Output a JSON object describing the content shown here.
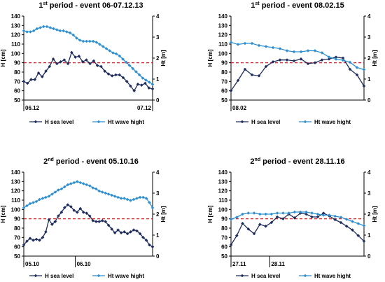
{
  "chart_data": [
    {
      "type": "line",
      "title_main": "1",
      "title_sup": "st",
      "title_rest": " period - event 06-07.12.13",
      "ylabel": "H [cm]",
      "y2label": "Ht [m]",
      "ylim": [
        50,
        140
      ],
      "y2lim": [
        0,
        4
      ],
      "yticks": [
        "50",
        "60",
        "70",
        "80",
        "90",
        "100",
        "110",
        "120",
        "130",
        "140"
      ],
      "y2ticks": [
        "0",
        "1",
        "2",
        "3",
        "4"
      ],
      "xlim": [
        0,
        28
      ],
      "xticks": [
        {
          "x": 0,
          "label": "06.12"
        },
        {
          "x": 28,
          "label": "07.12"
        }
      ],
      "threshold": 90,
      "series": [
        {
          "name": "H sea level",
          "color": "#1f2d5c",
          "axis": "left",
          "values": [
            70,
            68,
            72,
            72,
            79,
            75,
            81,
            86,
            94,
            89,
            91,
            93,
            89,
            101,
            96,
            97,
            91,
            93,
            89,
            92,
            87,
            86,
            81,
            78,
            76,
            77,
            77,
            74,
            70,
            65,
            60,
            67,
            66,
            68,
            63,
            62
          ]
        },
        {
          "name": "Ht wave hight",
          "color": "#2e8fd0",
          "axis": "right",
          "values": [
            3.3,
            3.25,
            3.25,
            3.3,
            3.4,
            3.45,
            3.5,
            3.5,
            3.45,
            3.4,
            3.35,
            3.3,
            3.3,
            3.25,
            3.2,
            3.1,
            2.95,
            2.85,
            2.8,
            2.8,
            2.8,
            2.8,
            2.75,
            2.65,
            2.55,
            2.45,
            2.35,
            2.25,
            2.2,
            2.1,
            1.95,
            1.8,
            1.65,
            1.5,
            1.35,
            1.2,
            1.05,
            0.95,
            0.85,
            0.75
          ]
        }
      ]
    },
    {
      "type": "line",
      "title_main": "1",
      "title_sup": "st",
      "title_rest": " period - event 08.02.15",
      "ylabel": "H [cm]",
      "y2label": "Ht [m]",
      "ylim": [
        50,
        140
      ],
      "y2lim": [
        0,
        4
      ],
      "yticks": [
        "50",
        "60",
        "70",
        "80",
        "90",
        "100",
        "110",
        "120",
        "130",
        "140"
      ],
      "y2ticks": [
        "0",
        "1",
        "2",
        "3",
        "4"
      ],
      "xlim": [
        0,
        28
      ],
      "xticks": [
        {
          "x": 0,
          "label": "08.02"
        }
      ],
      "threshold": 90,
      "series": [
        {
          "name": "H sea level",
          "color": "#1f2d5c",
          "axis": "left",
          "values": [
            60,
            71,
            83,
            77,
            76,
            86,
            91,
            93,
            93,
            92,
            94,
            89,
            90,
            93,
            94,
            96,
            95,
            83,
            77,
            65
          ]
        },
        {
          "name": "Ht wave hight",
          "color": "#2e8fd0",
          "axis": "right",
          "values": [
            2.75,
            2.65,
            2.7,
            2.7,
            2.6,
            2.55,
            2.5,
            2.45,
            2.35,
            2.3,
            2.3,
            2.35,
            2.35,
            2.25,
            2.05,
            1.95,
            1.9,
            1.8,
            1.55,
            1.45
          ]
        }
      ]
    },
    {
      "type": "line",
      "title_main": "2",
      "title_sup": "nd",
      "title_rest": " period - event 05.10.16",
      "ylabel": "H [cm]",
      "y2label": "Ht [m]",
      "ylim": [
        50,
        140
      ],
      "y2lim": [
        0,
        4
      ],
      "yticks": [
        "50",
        "60",
        "70",
        "80",
        "90",
        "100",
        "110",
        "120",
        "130",
        "140"
      ],
      "y2ticks": [
        "0",
        "1",
        "2",
        "3",
        "4"
      ],
      "xlim": [
        0,
        60
      ],
      "xticks": [
        {
          "x": 0,
          "label": "05.10"
        },
        {
          "x": 24,
          "label": "06.10"
        }
      ],
      "threshold": 90,
      "series": [
        {
          "name": "H sea level",
          "color": "#1f2d5c",
          "axis": "left",
          "values": [
            62,
            66,
            69,
            67,
            68,
            67,
            70,
            76,
            89,
            84,
            87,
            93,
            97,
            102,
            105,
            103,
            99,
            97,
            101,
            97,
            96,
            93,
            88,
            87,
            87,
            88,
            87,
            83,
            79,
            75,
            78,
            75,
            76,
            74,
            76,
            78,
            77,
            74,
            70,
            67,
            62,
            60
          ]
        },
        {
          "name": "Ht wave hight",
          "color": "#2e8fd0",
          "axis": "right",
          "values": [
            2.3,
            2.4,
            2.5,
            2.55,
            2.6,
            2.7,
            2.75,
            2.8,
            2.85,
            2.95,
            3.05,
            3.15,
            3.2,
            3.3,
            3.4,
            3.45,
            3.5,
            3.55,
            3.5,
            3.45,
            3.4,
            3.35,
            3.25,
            3.2,
            3.1,
            3.05,
            3.0,
            2.95,
            2.9,
            2.85,
            2.8,
            2.75,
            2.75,
            2.7,
            2.65,
            2.7,
            2.75,
            2.8,
            2.8,
            2.75,
            2.55,
            2.3
          ]
        }
      ]
    },
    {
      "type": "line",
      "title_main": "2",
      "title_sup": "nd",
      "title_rest": " period - event 28.11.16",
      "ylabel": "H [cm]",
      "y2label": "Ht [m]",
      "ylim": [
        50,
        140
      ],
      "y2lim": [
        0,
        4
      ],
      "yticks": [
        "50",
        "60",
        "70",
        "80",
        "90",
        "100",
        "110",
        "120",
        "130",
        "140"
      ],
      "y2ticks": [
        "0",
        "1",
        "2",
        "3",
        "4"
      ],
      "xlim": [
        0,
        48
      ],
      "xticks": [
        {
          "x": 0,
          "label": "27.11"
        },
        {
          "x": 14,
          "label": "28.11"
        }
      ],
      "threshold": 90,
      "series": [
        {
          "name": "H sea level",
          "color": "#1f2d5c",
          "axis": "left",
          "values": [
            62,
            72,
            85,
            79,
            74,
            84,
            82,
            86,
            92,
            90,
            95,
            91,
            96,
            95,
            92,
            92,
            96,
            93,
            89,
            86,
            82,
            78,
            72,
            66
          ]
        },
        {
          "name": "Ht wave hight",
          "color": "#2e8fd0",
          "axis": "right",
          "values": [
            1.75,
            1.85,
            2.0,
            2.05,
            2.05,
            2.0,
            2.0,
            2.0,
            2.05,
            2.05,
            2.05,
            2.1,
            2.1,
            2.1,
            2.05,
            2.0,
            1.95,
            1.95,
            1.9,
            1.85,
            1.75,
            1.65,
            1.55,
            1.45
          ]
        }
      ]
    }
  ]
}
